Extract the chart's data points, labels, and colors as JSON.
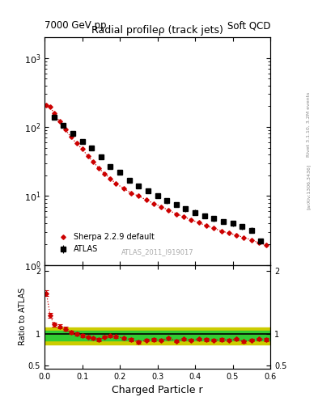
{
  "title_main": "Radial profileρ (track jets)",
  "header_left": "7000 GeV pp",
  "header_right": "Soft QCD",
  "watermark": "ATLAS_2011_I919017",
  "right_label": "Rivet 3.1.10, 3.2M events",
  "right_label2": "[arXiv:1306.3436]",
  "xlabel": "Charged Particle r",
  "ylabel_ratio": "Ratio to ATLAS",
  "atlas_x": [
    0.025,
    0.05,
    0.075,
    0.1,
    0.125,
    0.15,
    0.175,
    0.2,
    0.225,
    0.25,
    0.275,
    0.3,
    0.325,
    0.35,
    0.375,
    0.4,
    0.425,
    0.45,
    0.475,
    0.5,
    0.525,
    0.55,
    0.575
  ],
  "atlas_y": [
    140,
    105,
    80,
    62,
    50,
    37,
    27,
    22,
    17,
    14,
    12,
    10,
    8.5,
    7.5,
    6.5,
    5.8,
    5.2,
    4.7,
    4.3,
    4.0,
    3.6,
    3.2,
    2.2
  ],
  "atlas_yerr": [
    8,
    6,
    5,
    4,
    3,
    2.5,
    2,
    1.5,
    1.2,
    1.0,
    0.9,
    0.8,
    0.7,
    0.6,
    0.55,
    0.5,
    0.45,
    0.42,
    0.38,
    0.35,
    0.32,
    0.28,
    0.22
  ],
  "sherpa_x": [
    0.005,
    0.015,
    0.025,
    0.04,
    0.055,
    0.07,
    0.085,
    0.1,
    0.115,
    0.13,
    0.145,
    0.16,
    0.175,
    0.19,
    0.21,
    0.23,
    0.25,
    0.27,
    0.29,
    0.31,
    0.33,
    0.35,
    0.37,
    0.39,
    0.41,
    0.43,
    0.45,
    0.47,
    0.49,
    0.51,
    0.53,
    0.55,
    0.57,
    0.59
  ],
  "sherpa_y": [
    210,
    195,
    160,
    120,
    92,
    72,
    58,
    48,
    38,
    31,
    25,
    21,
    18,
    15,
    13,
    11,
    10,
    8.8,
    7.8,
    7.0,
    6.2,
    5.5,
    5.0,
    4.5,
    4.1,
    3.7,
    3.4,
    3.1,
    2.9,
    2.7,
    2.5,
    2.3,
    2.1,
    1.95
  ],
  "ratio_x": [
    0.005,
    0.015,
    0.025,
    0.04,
    0.055,
    0.07,
    0.085,
    0.1,
    0.115,
    0.13,
    0.145,
    0.16,
    0.175,
    0.19,
    0.21,
    0.23,
    0.25,
    0.27,
    0.29,
    0.31,
    0.33,
    0.35,
    0.37,
    0.39,
    0.41,
    0.43,
    0.45,
    0.47,
    0.49,
    0.51,
    0.53,
    0.55,
    0.57,
    0.59
  ],
  "ratio_y": [
    1.65,
    1.3,
    1.15,
    1.12,
    1.08,
    1.03,
    1.0,
    0.97,
    0.95,
    0.93,
    0.91,
    0.95,
    0.97,
    0.96,
    0.93,
    0.91,
    0.87,
    0.9,
    0.91,
    0.9,
    0.93,
    0.89,
    0.92,
    0.9,
    0.92,
    0.91,
    0.9,
    0.91,
    0.9,
    0.92,
    0.88,
    0.9,
    0.92,
    0.91
  ],
  "ratio_yerr": [
    0.05,
    0.04,
    0.03,
    0.03,
    0.03,
    0.025,
    0.025,
    0.025,
    0.02,
    0.02,
    0.02,
    0.02,
    0.02,
    0.02,
    0.02,
    0.02,
    0.025,
    0.02,
    0.02,
    0.02,
    0.02,
    0.02,
    0.02,
    0.02,
    0.02,
    0.02,
    0.02,
    0.02,
    0.02,
    0.02,
    0.02,
    0.02,
    0.02,
    0.02
  ],
  "band_yellow_lo": 0.83,
  "band_yellow_hi": 1.1,
  "band_green_lo": 0.895,
  "band_green_hi": 1.05,
  "ylim_main": [
    1.0,
    2000
  ],
  "ylim_ratio": [
    0.45,
    2.1
  ],
  "xlim": [
    0.0,
    0.6
  ],
  "bg_color": "#ffffff",
  "atlas_color": "#000000",
  "sherpa_color": "#cc0000",
  "green_band_color": "#33cc33",
  "yellow_band_color": "#cccc00"
}
